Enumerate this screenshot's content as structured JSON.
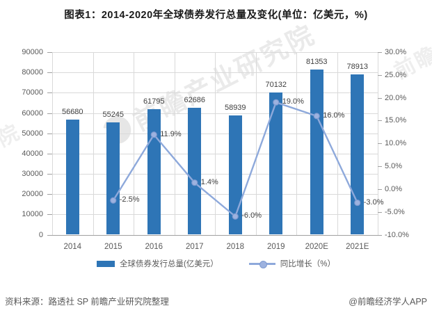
{
  "title": "图表1：2014-2020年全球债券发行总量及变化(单位：亿美元，%)",
  "footer": {
    "source": "资料来源：路透社 SP 前瞻产业研究院整理",
    "brand": "@前瞻经济学人APP"
  },
  "watermark": {
    "text": "前瞻产业研究院"
  },
  "chart_data": {
    "type": "combo-bar-line",
    "title": "图表1：2014-2020年全球债券发行总量及变化(单位：亿美元，%)",
    "categories": [
      "2014",
      "2015",
      "2016",
      "2017",
      "2018",
      "2019",
      "2020E",
      "2021E"
    ],
    "series": [
      {
        "name": "全球债券发行总量(亿美元）",
        "type": "bar",
        "axis": "left",
        "color": "#2E75B6",
        "values": [
          56680,
          55245,
          61795,
          62686,
          58939,
          70132,
          81353,
          78913
        ],
        "value_labels": [
          "56680",
          "55245",
          "61795",
          "62686",
          "58939",
          "70132",
          "81353",
          "78913"
        ]
      },
      {
        "name": "同比增长（%）",
        "type": "line",
        "axis": "right",
        "color": "#8EA9DB",
        "marker_fill": "#9DB2DF",
        "marker_stroke": "#7E9AD0",
        "values": [
          null,
          -2.5,
          11.9,
          1.4,
          -6.0,
          19.0,
          16.0,
          -3.0
        ],
        "value_labels": [
          null,
          "-2.5%",
          "11.9%",
          "1.4%",
          "-6.0%",
          "19.0%",
          "16.0%",
          "-3.0%"
        ]
      }
    ],
    "left_axis": {
      "min": 0,
      "max": 90000,
      "step": 10000,
      "tick_labels": [
        "90000",
        "80000",
        "70000",
        "60000",
        "50000",
        "40000",
        "30000",
        "20000",
        "10000",
        "0"
      ]
    },
    "right_axis": {
      "min": -10,
      "max": 30,
      "step": 5,
      "tick_labels": [
        "30.0%",
        "25.0%",
        "20.0%",
        "15.0%",
        "10.0%",
        "5.0%",
        "0.0%",
        "-5.0%",
        "-10.0%"
      ]
    },
    "grid": {
      "horizontal": true,
      "vertical": true
    },
    "legend_position": "bottom",
    "xlabel": "",
    "ylabel_left": "亿美元",
    "ylabel_right": "%"
  }
}
